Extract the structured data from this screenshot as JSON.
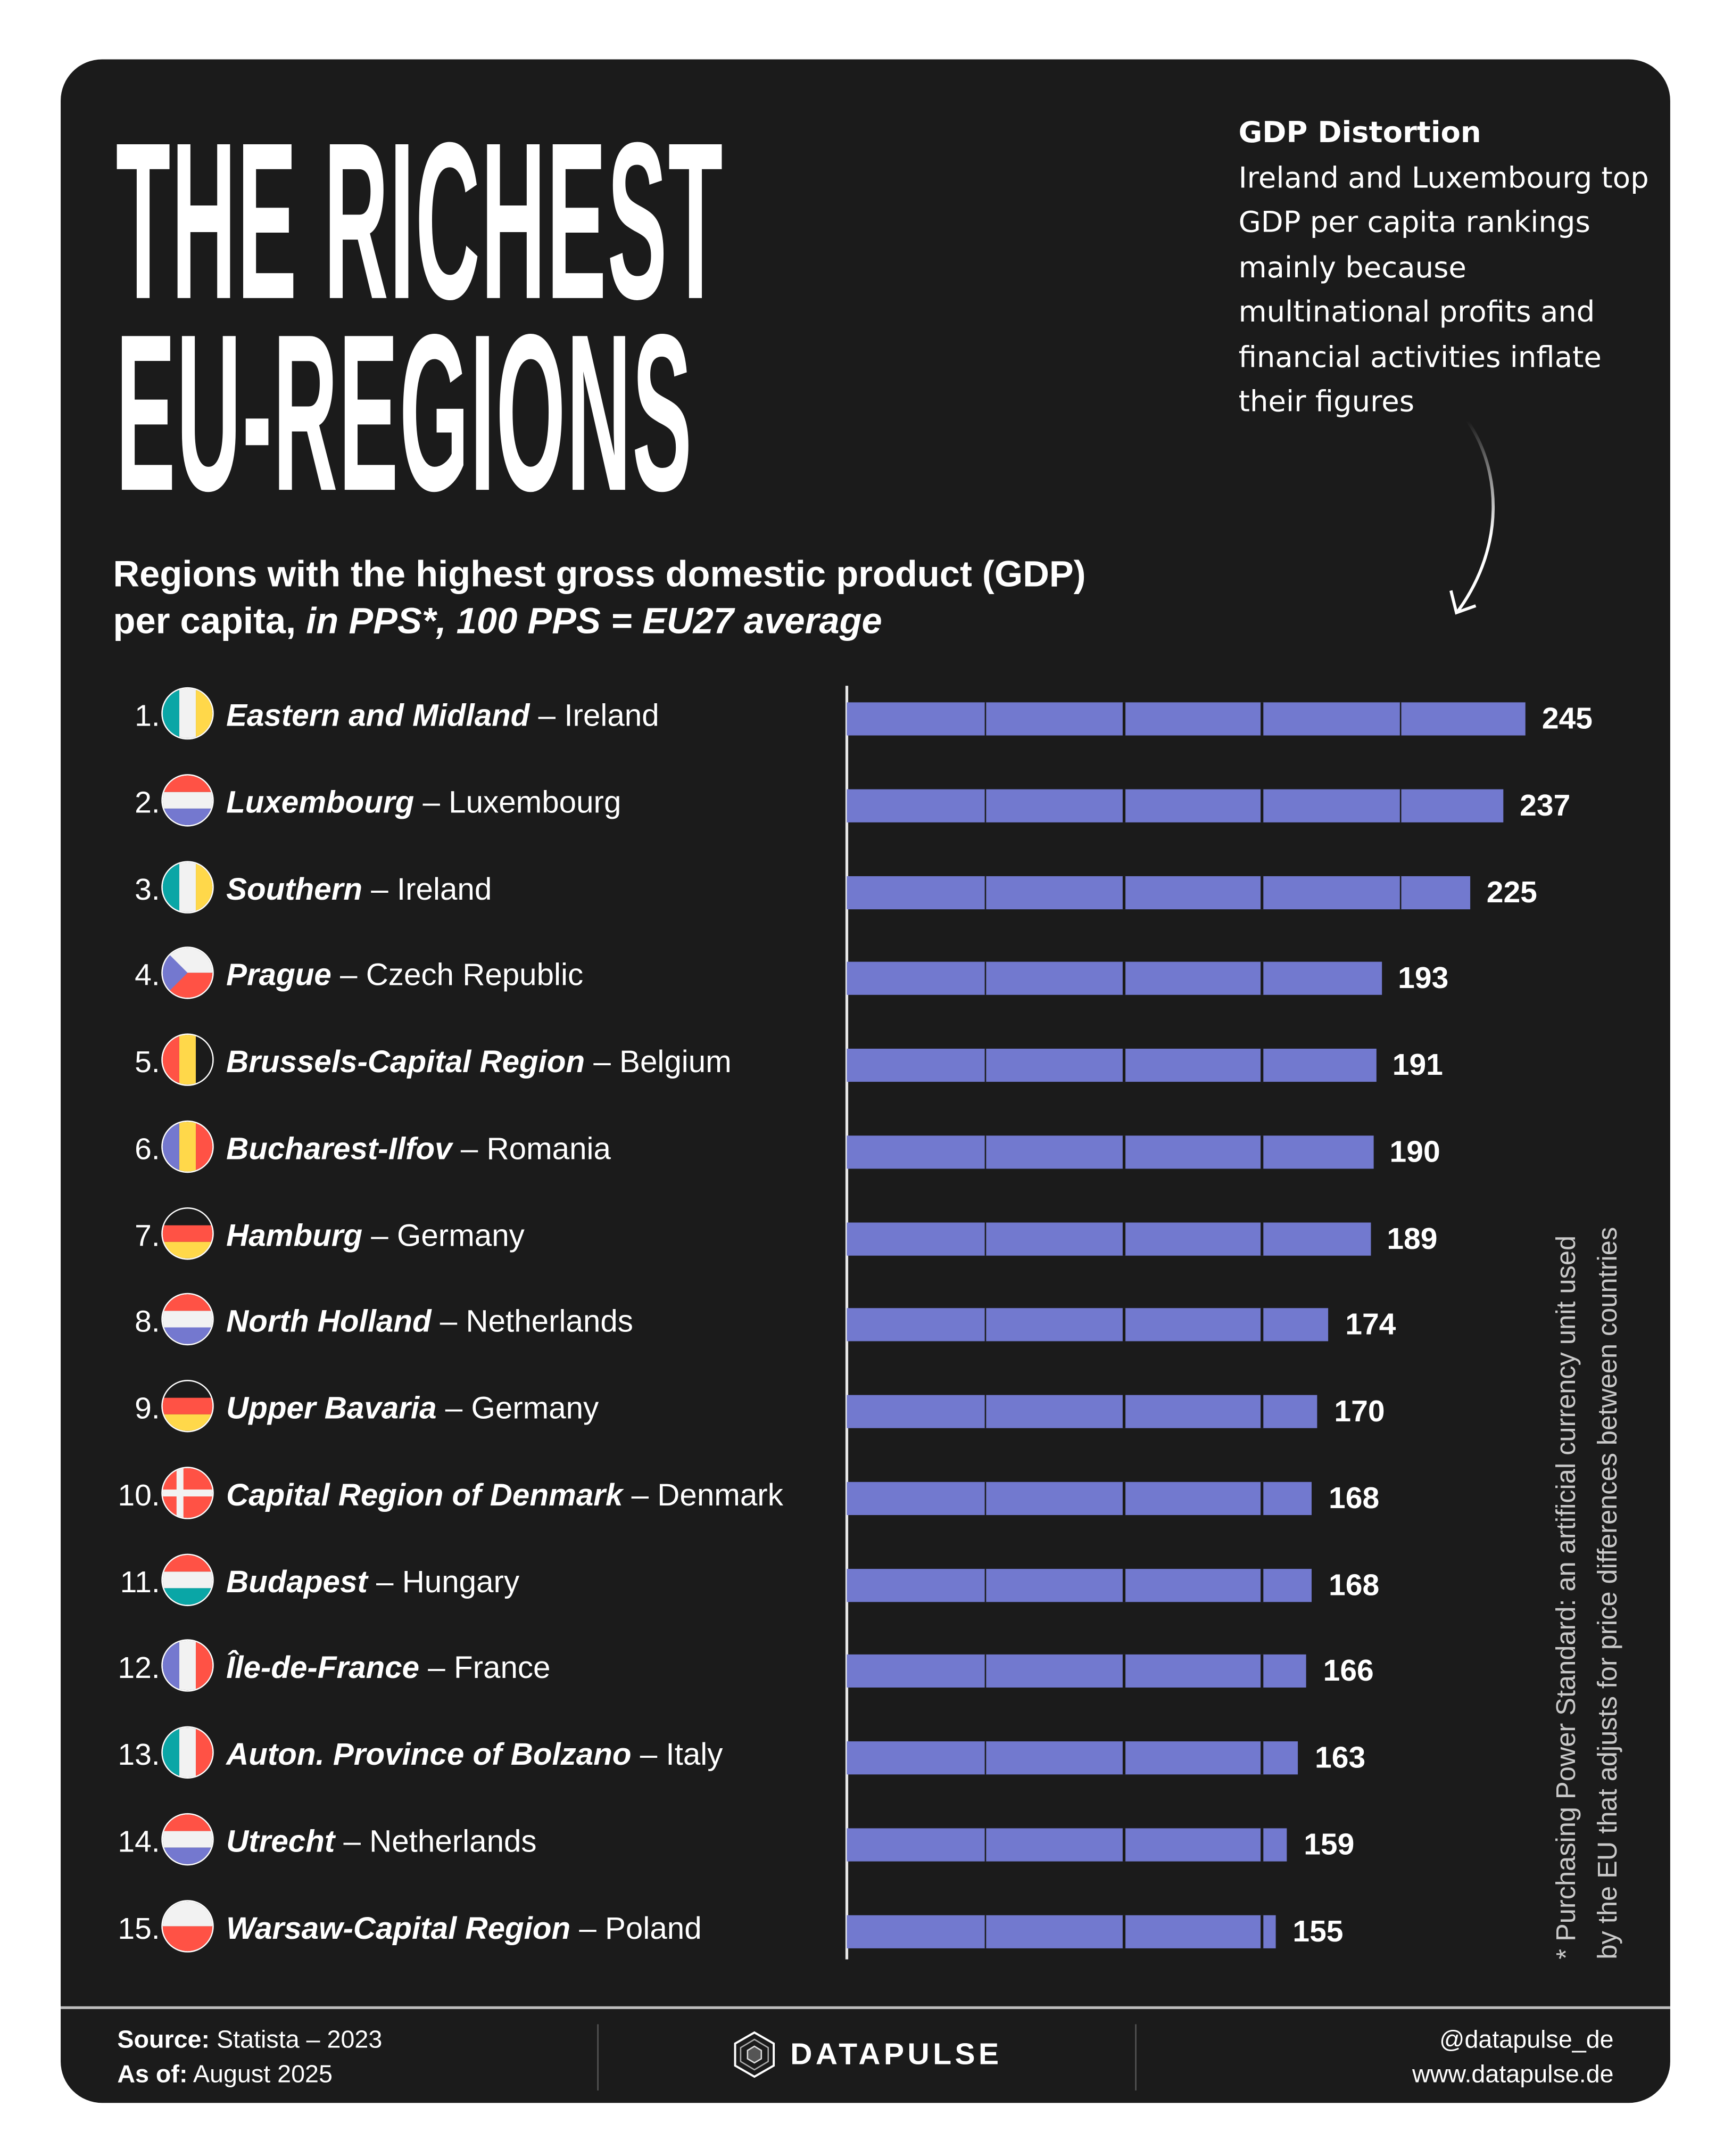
{
  "title": {
    "line1": "THE RICHEST",
    "line2": "EU-REGIONS"
  },
  "note": {
    "title": "GDP Distortion",
    "text": "Ireland and Luxembourg top GDP per capita rankings mainly because multinational profits and financial activities inflate their figures"
  },
  "subtitle": {
    "line1": "Regions with the highest gross domestic product (GDP)",
    "line2_bold": "per capita, ",
    "line2_italic": "in PPS*, 100 PPS = EU27 average"
  },
  "footnote": {
    "line1": "* Purchasing Power Standard: an artificial currency unit used",
    "line2": "by the EU that adjusts for price differences between countries"
  },
  "colors": {
    "background": "#1b1b1b",
    "bar": "#7279cf",
    "text": "#ffffff"
  },
  "chart_data": {
    "type": "bar",
    "orientation": "horizontal",
    "xlim": [
      0,
      250
    ],
    "segment_step": 50,
    "categories": [
      "Eastern and Midland",
      "Luxembourg",
      "Southern",
      "Prague",
      "Brussels-Capital Region",
      "Bucharest-Ilfov",
      "Hamburg",
      "North Holland",
      "Upper Bavaria",
      "Capital Region of Denmark",
      "Budapest",
      "Île-de-France",
      "Auton. Province of Bolzano",
      "Utrecht",
      "Warsaw-Capital Region"
    ],
    "values": [
      245,
      237,
      225,
      193,
      191,
      190,
      189,
      174,
      170,
      168,
      168,
      166,
      163,
      159,
      155
    ],
    "rows": [
      {
        "rank": "1.",
        "region": "Eastern and Midland",
        "country": "Ireland",
        "value": 245,
        "flag": {
          "icon": "ireland-flag-icon",
          "type": "v",
          "colors": [
            "#0aa6a6",
            "#f2f2f2",
            "#ffd84a"
          ]
        }
      },
      {
        "rank": "2.",
        "region": "Luxembourg",
        "country": "Luxembourg",
        "value": 237,
        "flag": {
          "icon": "luxembourg-flag-icon",
          "type": "h",
          "colors": [
            "#ff5245",
            "#f2f2f2",
            "#7478cf"
          ]
        }
      },
      {
        "rank": "3.",
        "region": "Southern",
        "country": "Ireland",
        "value": 225,
        "flag": {
          "icon": "ireland-flag-icon",
          "type": "v",
          "colors": [
            "#0aa6a6",
            "#f2f2f2",
            "#ffd84a"
          ]
        }
      },
      {
        "rank": "4.",
        "region": "Prague",
        "country": "Czech Republic",
        "value": 193,
        "flag": {
          "icon": "czech-flag-icon",
          "type": "czech",
          "colors": [
            "#f2f2f2",
            "#ff5245",
            "#7478cf"
          ]
        }
      },
      {
        "rank": "5.",
        "region": "Brussels-Capital Region",
        "country": "Belgium",
        "value": 191,
        "flag": {
          "icon": "belgium-flag-icon",
          "type": "v",
          "colors": [
            "#ff5245",
            "#ffd84a",
            "#1b1b1b"
          ]
        }
      },
      {
        "rank": "6.",
        "region": "Bucharest-Ilfov",
        "country": "Romania",
        "value": 190,
        "flag": {
          "icon": "romania-flag-icon",
          "type": "v",
          "colors": [
            "#7478cf",
            "#ffd84a",
            "#ff5245"
          ]
        }
      },
      {
        "rank": "7.",
        "region": "Hamburg",
        "country": "Germany",
        "value": 189,
        "flag": {
          "icon": "germany-flag-icon",
          "type": "h",
          "colors": [
            "#1b1b1b",
            "#ff5245",
            "#ffd84a"
          ]
        }
      },
      {
        "rank": "8.",
        "region": "North Holland",
        "country": "Netherlands",
        "value": 174,
        "flag": {
          "icon": "netherlands-flag-icon",
          "type": "h",
          "colors": [
            "#ff5245",
            "#f2f2f2",
            "#7478cf"
          ]
        }
      },
      {
        "rank": "9.",
        "region": "Upper Bavaria",
        "country": "Germany",
        "value": 170,
        "flag": {
          "icon": "germany-flag-icon",
          "type": "h",
          "colors": [
            "#1b1b1b",
            "#ff5245",
            "#ffd84a"
          ]
        }
      },
      {
        "rank": "10.",
        "region": "Capital Region of Denmark",
        "country": "Denmark",
        "value": 168,
        "flag": {
          "icon": "denmark-flag-icon",
          "type": "denmark",
          "colors": [
            "#ff5245",
            "#f2f2f2"
          ]
        }
      },
      {
        "rank": "11.",
        "region": "Budapest",
        "country": "Hungary",
        "value": 168,
        "flag": {
          "icon": "hungary-flag-icon",
          "type": "h",
          "colors": [
            "#ff5245",
            "#f2f2f2",
            "#0aa6a6"
          ]
        }
      },
      {
        "rank": "12.",
        "region": "Île-de-France",
        "country": "France",
        "value": 166,
        "flag": {
          "icon": "france-flag-icon",
          "type": "v",
          "colors": [
            "#7478cf",
            "#f2f2f2",
            "#ff5245"
          ]
        }
      },
      {
        "rank": "13.",
        "region": "Auton. Province of Bolzano",
        "country": "Italy",
        "value": 163,
        "flag": {
          "icon": "italy-flag-icon",
          "type": "v",
          "colors": [
            "#0aa6a6",
            "#f2f2f2",
            "#ff5245"
          ]
        }
      },
      {
        "rank": "14.",
        "region": "Utrecht",
        "country": "Netherlands",
        "value": 159,
        "flag": {
          "icon": "netherlands-flag-icon",
          "type": "h",
          "colors": [
            "#ff5245",
            "#f2f2f2",
            "#7478cf"
          ]
        }
      },
      {
        "rank": "15.",
        "region": "Warsaw-Capital Region",
        "country": "Poland",
        "value": 155,
        "flag": {
          "icon": "poland-flag-icon",
          "type": "h2",
          "colors": [
            "#f2f2f2",
            "#ff5245"
          ]
        }
      }
    ]
  },
  "footer": {
    "source_label": "Source:",
    "source_value": "Statista – 2023",
    "asof_label": "As of:",
    "asof_value": "August 2025",
    "brand": "DATAPULSE",
    "handle": "@datapulse_de",
    "website": "www.datapulse.de"
  }
}
